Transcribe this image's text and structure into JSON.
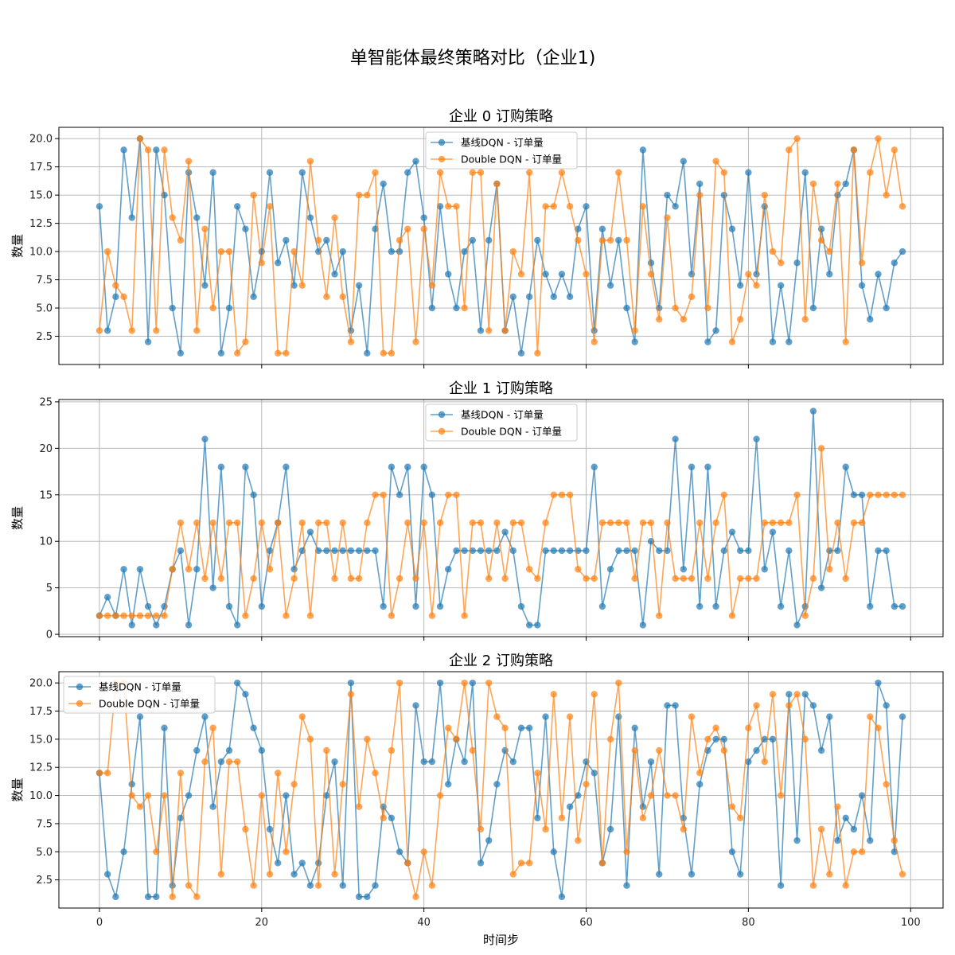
{
  "figure": {
    "suptitle": "单智能体最终策略对比（企业1)"
  },
  "colors": {
    "baseline": "#1f77b4",
    "double_dqn": "#ff7f0e",
    "grid": "#b0b0b0"
  },
  "chart_data": [
    {
      "type": "line",
      "title": "企业 0 订购策略",
      "xlabel": "",
      "ylabel": "数量",
      "xlim": [
        -5,
        104
      ],
      "ylim": [
        0,
        21
      ],
      "xticks": [
        0,
        20,
        40,
        60,
        80,
        100
      ],
      "yticks": [
        2.5,
        5.0,
        7.5,
        10.0,
        12.5,
        15.0,
        17.5,
        20.0
      ],
      "ytick_labels": [
        "2.5",
        "5.0",
        "7.5",
        "10.0",
        "12.5",
        "15.0",
        "17.5",
        "20.0"
      ],
      "grid": true,
      "legend_position": "upper center",
      "series": [
        {
          "name": "基线DQN - 订单量",
          "color_key": "baseline",
          "values": [
            14,
            3,
            6,
            19,
            13,
            20,
            2,
            19,
            15,
            5,
            1,
            17,
            13,
            7,
            17,
            1,
            5,
            14,
            12,
            6,
            10,
            17,
            9,
            11,
            7,
            17,
            13,
            10,
            11,
            8,
            10,
            3,
            7,
            1,
            12,
            16,
            10,
            10,
            17,
            18,
            13,
            5,
            14,
            8,
            5,
            10,
            11,
            3,
            11,
            16,
            3,
            6,
            1,
            6,
            11,
            8,
            6,
            8,
            6,
            12,
            14,
            3,
            12,
            7,
            11,
            5,
            2,
            19,
            9,
            5,
            15,
            14,
            18,
            8,
            16,
            2,
            3,
            15,
            12,
            7,
            17,
            8,
            14,
            2,
            7,
            2,
            9,
            17,
            5,
            12,
            8,
            15,
            16,
            19,
            7,
            4,
            8,
            5,
            9,
            10
          ]
        },
        {
          "name": "Double DQN - 订单量",
          "color_key": "double_dqn",
          "values": [
            3,
            10,
            7,
            6,
            3,
            20,
            19,
            3,
            19,
            13,
            11,
            18,
            3,
            12,
            5,
            10,
            10,
            1,
            2,
            15,
            9,
            14,
            1,
            1,
            10,
            7,
            18,
            11,
            6,
            13,
            6,
            2,
            15,
            15,
            17,
            1,
            1,
            11,
            12,
            2,
            12,
            7,
            17,
            14,
            14,
            5,
            17,
            17,
            3,
            16,
            3,
            10,
            8,
            17,
            1,
            14,
            14,
            17,
            14,
            11,
            8,
            2,
            11,
            11,
            17,
            11,
            3,
            14,
            8,
            4,
            13,
            5,
            4,
            6,
            15,
            5,
            18,
            17,
            2,
            4,
            8,
            7,
            15,
            10,
            9,
            19,
            20,
            4,
            16,
            11,
            10,
            16,
            2,
            19,
            9,
            17,
            20,
            15,
            19,
            14
          ]
        }
      ]
    },
    {
      "type": "line",
      "title": "企业 1 订购策略",
      "xlabel": "",
      "ylabel": "数量",
      "xlim": [
        -5,
        104
      ],
      "ylim": [
        -0.25,
        25.25
      ],
      "xticks": [
        0,
        20,
        40,
        60,
        80,
        100
      ],
      "yticks": [
        0,
        5,
        10,
        15,
        20,
        25
      ],
      "ytick_labels": [
        "0",
        "5",
        "10",
        "15",
        "20",
        "25"
      ],
      "grid": true,
      "legend_position": "upper center",
      "series": [
        {
          "name": "基线DQN - 订单量",
          "color_key": "baseline",
          "values": [
            2,
            4,
            2,
            7,
            1,
            7,
            3,
            1,
            3,
            7,
            9,
            1,
            7,
            21,
            5,
            18,
            3,
            1,
            18,
            15,
            3,
            9,
            12,
            18,
            7,
            9,
            11,
            9,
            9,
            9,
            9,
            9,
            9,
            9,
            9,
            3,
            18,
            15,
            18,
            3,
            18,
            15,
            3,
            7,
            9,
            9,
            9,
            9,
            9,
            9,
            11,
            9,
            3,
            1,
            1,
            9,
            9,
            9,
            9,
            9,
            9,
            18,
            3,
            7,
            9,
            9,
            9,
            1,
            10,
            9,
            9,
            21,
            7,
            18,
            3,
            18,
            3,
            9,
            11,
            9,
            9,
            21,
            7,
            11,
            3,
            9,
            1,
            3,
            24,
            5,
            9,
            9,
            18,
            15,
            15,
            3,
            9,
            9,
            3,
            3
          ]
        },
        {
          "name": "Double DQN - 订单量",
          "color_key": "double_dqn",
          "values": [
            2,
            2,
            2,
            2,
            2,
            2,
            2,
            2,
            2,
            7,
            12,
            7,
            12,
            6,
            12,
            6,
            12,
            12,
            2,
            6,
            12,
            7,
            12,
            2,
            6,
            12,
            2,
            12,
            12,
            6,
            12,
            6,
            6,
            12,
            15,
            15,
            2,
            6,
            12,
            6,
            12,
            2,
            12,
            15,
            15,
            2,
            12,
            12,
            6,
            12,
            6,
            12,
            12,
            7,
            6,
            12,
            15,
            15,
            15,
            7,
            6,
            6,
            12,
            12,
            12,
            12,
            6,
            12,
            12,
            2,
            12,
            6,
            6,
            6,
            12,
            6,
            12,
            15,
            2,
            6,
            6,
            6,
            12,
            12,
            12,
            12,
            15,
            2,
            6,
            20,
            7,
            12,
            6,
            12,
            12,
            15,
            15,
            15,
            15,
            15
          ]
        }
      ]
    },
    {
      "type": "line",
      "title": "企业 2 订购策略",
      "xlabel": "时间步",
      "ylabel": "数量",
      "xlim": [
        -5,
        104
      ],
      "ylim": [
        0,
        21
      ],
      "xticks": [
        0,
        20,
        40,
        60,
        80,
        100
      ],
      "yticks": [
        2.5,
        5.0,
        7.5,
        10.0,
        12.5,
        15.0,
        17.5,
        20.0
      ],
      "ytick_labels": [
        "2.5",
        "5.0",
        "7.5",
        "10.0",
        "12.5",
        "15.0",
        "17.5",
        "20.0"
      ],
      "grid": true,
      "legend_position": "upper left",
      "series": [
        {
          "name": "基线DQN - 订单量",
          "color_key": "baseline",
          "values": [
            12,
            3,
            1,
            5,
            11,
            17,
            1,
            1,
            16,
            2,
            8,
            10,
            14,
            17,
            9,
            13,
            14,
            20,
            19,
            16,
            14,
            7,
            4,
            10,
            3,
            4,
            2,
            4,
            10,
            13,
            2,
            20,
            1,
            1,
            2,
            9,
            8,
            5,
            4,
            18,
            13,
            13,
            20,
            11,
            15,
            13,
            20,
            4,
            6,
            11,
            14,
            13,
            16,
            16,
            8,
            17,
            5,
            1,
            9,
            10,
            13,
            12,
            4,
            7,
            17,
            2,
            16,
            9,
            13,
            3,
            18,
            18,
            8,
            3,
            11,
            14,
            15,
            15,
            5,
            3,
            13,
            14,
            15,
            15,
            2,
            19,
            6,
            19,
            18,
            14,
            17,
            6,
            8,
            7,
            10,
            6,
            20,
            18,
            5,
            17
          ]
        },
        {
          "name": "Double DQN - 订单量",
          "color_key": "double_dqn",
          "values": [
            12,
            12,
            20,
            20,
            10,
            9,
            10,
            5,
            10,
            1,
            12,
            2,
            1,
            13,
            16,
            3,
            13,
            13,
            7,
            2,
            10,
            3,
            12,
            5,
            11,
            17,
            15,
            2,
            14,
            3,
            11,
            19,
            9,
            15,
            12,
            8,
            14,
            20,
            4,
            1,
            5,
            2,
            10,
            16,
            15,
            20,
            14,
            7,
            20,
            17,
            16,
            3,
            4,
            4,
            12,
            7,
            19,
            8,
            17,
            6,
            11,
            19,
            4,
            15,
            20,
            5,
            14,
            8,
            10,
            14,
            10,
            10,
            7,
            17,
            12,
            15,
            16,
            14,
            9,
            8,
            16,
            18,
            13,
            19,
            10,
            18,
            19,
            15,
            2,
            7,
            3,
            9,
            2,
            5,
            5,
            17,
            16,
            11,
            6,
            3
          ]
        }
      ]
    }
  ]
}
